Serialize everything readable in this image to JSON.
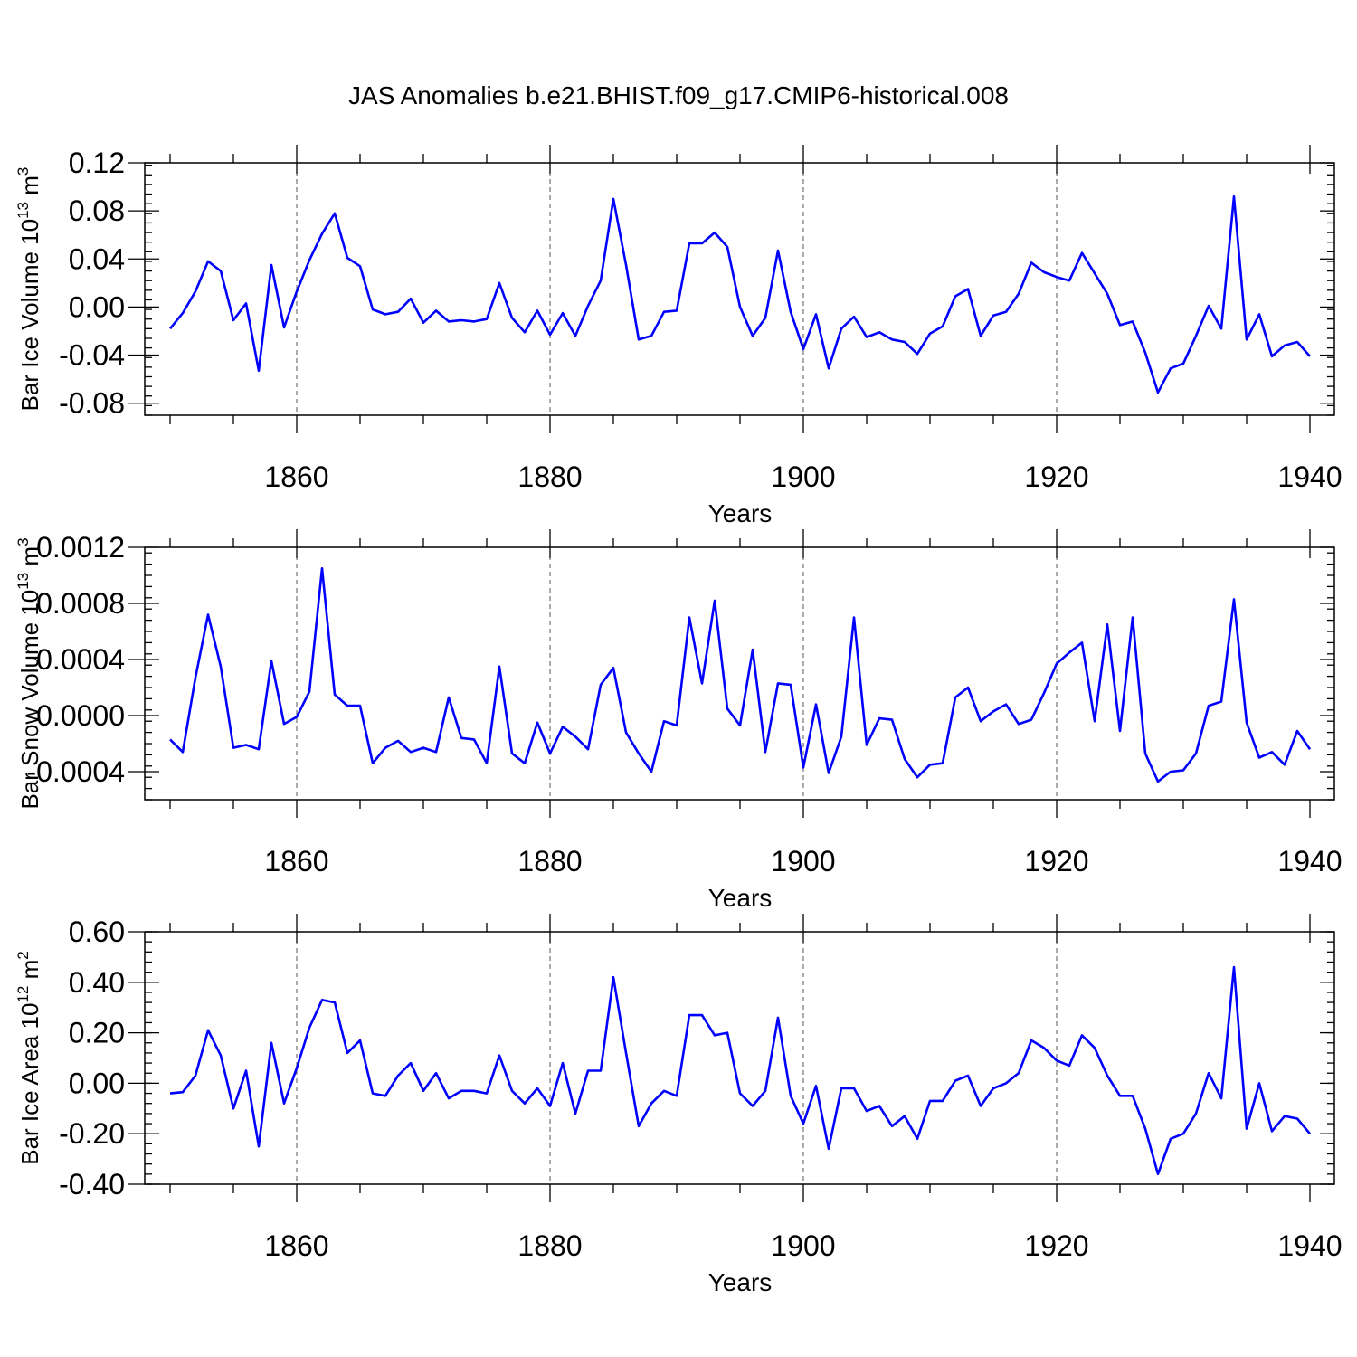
{
  "title": "JAS Anomalies b.e21.BHIST.f09_g17.CMIP6-historical.008",
  "colors": {
    "line": "#0000ff",
    "axis": "#000000",
    "grid": "#555555"
  },
  "chart_data": [
    {
      "type": "line",
      "ylabel_main": "Bar Ice Volume 10",
      "ylabel_exp": "13",
      "ylabel_unit": "m",
      "ylabel_unit_exp": "3",
      "xlabel": "Years",
      "xlim": [
        1850,
        1940
      ],
      "ylim": [
        -0.09,
        0.12
      ],
      "yticks": [
        -0.08,
        -0.04,
        0.0,
        0.04,
        0.08,
        0.12
      ],
      "ytick_labels": [
        "-0.08",
        "-0.04",
        "0.00",
        "0.04",
        "0.08",
        "0.12"
      ],
      "yminor_step": 0.008,
      "xticks": [
        1860,
        1880,
        1900,
        1920,
        1940
      ],
      "xtick_labels": [
        "1860",
        "1880",
        "1900",
        "1920",
        "1940"
      ],
      "grid_x": true,
      "series": [
        {
          "name": "Bar Ice Volume",
          "x_start": 1850,
          "values": [
            -0.018,
            -0.005,
            0.013,
            0.038,
            0.03,
            -0.011,
            0.003,
            -0.053,
            0.035,
            -0.017,
            0.013,
            0.039,
            0.061,
            0.078,
            0.041,
            0.034,
            -0.002,
            -0.006,
            -0.004,
            0.007,
            -0.013,
            -0.003,
            -0.012,
            -0.011,
            -0.012,
            -0.01,
            0.02,
            -0.009,
            -0.021,
            -0.003,
            -0.023,
            -0.005,
            -0.024,
            0.001,
            0.022,
            0.09,
            0.035,
            -0.027,
            -0.024,
            -0.004,
            -0.003,
            0.053,
            0.053,
            0.062,
            0.05,
            0.0,
            -0.024,
            -0.009,
            0.047,
            -0.004,
            -0.035,
            -0.006,
            -0.051,
            -0.018,
            -0.008,
            -0.025,
            -0.021,
            -0.027,
            -0.029,
            -0.039,
            -0.022,
            -0.016,
            0.009,
            0.015,
            -0.024,
            -0.007,
            -0.004,
            0.011,
            0.037,
            0.029,
            0.025,
            0.022,
            0.045,
            0.028,
            0.011,
            -0.015,
            -0.012,
            -0.038,
            -0.071,
            -0.051,
            -0.047,
            -0.024,
            0.001,
            -0.018,
            0.092,
            -0.027,
            -0.006,
            -0.041,
            -0.032,
            -0.029,
            -0.041
          ]
        }
      ]
    },
    {
      "type": "line",
      "ylabel_main": "Bar Snow Volume 10",
      "ylabel_exp": "13",
      "ylabel_unit": "m",
      "ylabel_unit_exp": "3",
      "xlabel": "Years",
      "xlim": [
        1850,
        1940
      ],
      "ylim": [
        -0.0006,
        0.0012
      ],
      "yticks": [
        -0.0004,
        0.0,
        0.0004,
        0.0008,
        0.0012
      ],
      "ytick_labels": [
        "-0.0004",
        "0.0000",
        "0.0004",
        "0.0008",
        "0.0012"
      ],
      "yminor_step": 8e-05,
      "xticks": [
        1860,
        1880,
        1900,
        1920,
        1940
      ],
      "xtick_labels": [
        "1860",
        "1880",
        "1900",
        "1920",
        "1940"
      ],
      "grid_x": true,
      "series": [
        {
          "name": "Bar Snow Volume",
          "x_start": 1850,
          "values": [
            -0.00017,
            -0.00026,
            0.00027,
            0.00072,
            0.00035,
            -0.00023,
            -0.00021,
            -0.00024,
            0.00039,
            -6e-05,
            -1e-05,
            0.00017,
            0.00105,
            0.00015,
            7e-05,
            7e-05,
            -0.00034,
            -0.00023,
            -0.00018,
            -0.00026,
            -0.00023,
            -0.00026,
            0.00013,
            -0.00016,
            -0.00017,
            -0.00034,
            0.00035,
            -0.00027,
            -0.00034,
            -5e-05,
            -0.00027,
            -8e-05,
            -0.00015,
            -0.00024,
            0.00022,
            0.00034,
            -0.00012,
            -0.00027,
            -0.0004,
            -4e-05,
            -7e-05,
            0.0007,
            0.00023,
            0.00082,
            5e-05,
            -7e-05,
            0.00047,
            -0.00026,
            0.00023,
            0.00022,
            -0.00037,
            8e-05,
            -0.00041,
            -0.00015,
            0.0007,
            -0.00021,
            -2e-05,
            -3e-05,
            -0.00031,
            -0.00044,
            -0.00035,
            -0.00034,
            0.00013,
            0.0002,
            -4e-05,
            3e-05,
            8e-05,
            -6e-05,
            -3e-05,
            0.00016,
            0.00037,
            0.00045,
            0.00052,
            -4e-05,
            0.00065,
            -0.00011,
            0.0007,
            -0.00027,
            -0.00047,
            -0.0004,
            -0.00039,
            -0.00027,
            7e-05,
            0.0001,
            0.00083,
            -5e-05,
            -0.0003,
            -0.00026,
            -0.00035,
            -0.00011,
            -0.00024
          ]
        }
      ]
    },
    {
      "type": "line",
      "ylabel_main": "Bar Ice Area 10",
      "ylabel_exp": "12",
      "ylabel_unit": "m",
      "ylabel_unit_exp": "2",
      "xlabel": "Years",
      "xlim": [
        1850,
        1940
      ],
      "ylim": [
        -0.4,
        0.6
      ],
      "yticks": [
        -0.4,
        -0.2,
        0.0,
        0.2,
        0.4,
        0.6
      ],
      "ytick_labels": [
        "-0.40",
        "-0.20",
        "0.00",
        "0.20",
        "0.40",
        "0.60"
      ],
      "yminor_step": 0.04,
      "xticks": [
        1860,
        1880,
        1900,
        1920,
        1940
      ],
      "xtick_labels": [
        "1860",
        "1880",
        "1900",
        "1920",
        "1940"
      ],
      "grid_x": true,
      "series": [
        {
          "name": "Bar Ice Area",
          "x_start": 1850,
          "values": [
            -0.04,
            -0.035,
            0.03,
            0.21,
            0.11,
            -0.1,
            0.05,
            -0.25,
            0.16,
            -0.08,
            0.06,
            0.22,
            0.33,
            0.32,
            0.12,
            0.17,
            -0.04,
            -0.05,
            0.03,
            0.08,
            -0.03,
            0.04,
            -0.06,
            -0.03,
            -0.03,
            -0.04,
            0.11,
            -0.03,
            -0.08,
            -0.02,
            -0.09,
            0.08,
            -0.12,
            0.05,
            0.05,
            0.42,
            0.12,
            -0.17,
            -0.08,
            -0.03,
            -0.05,
            0.27,
            0.27,
            0.19,
            0.2,
            -0.04,
            -0.09,
            -0.03,
            0.26,
            -0.05,
            -0.16,
            -0.01,
            -0.26,
            -0.02,
            -0.02,
            -0.11,
            -0.09,
            -0.17,
            -0.13,
            -0.22,
            -0.07,
            -0.07,
            0.01,
            0.03,
            -0.09,
            -0.02,
            0.0,
            0.04,
            0.17,
            0.14,
            0.09,
            0.07,
            0.19,
            0.14,
            0.03,
            -0.05,
            -0.05,
            -0.18,
            -0.36,
            -0.22,
            -0.2,
            -0.12,
            0.04,
            -0.06,
            0.46,
            -0.18,
            0.0,
            -0.19,
            -0.13,
            -0.14,
            -0.2
          ]
        }
      ]
    }
  ]
}
